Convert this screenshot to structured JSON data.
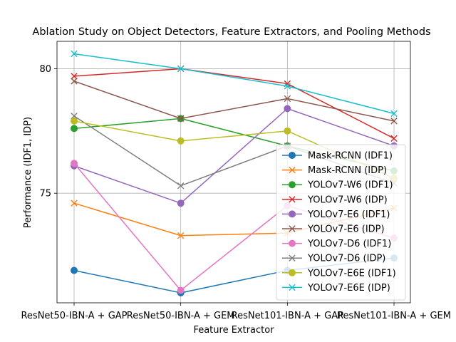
{
  "chart_data": {
    "type": "line",
    "title": "Ablation Study on Object Detectors, Feature Extractors, and Pooling Methods",
    "xlabel": "Feature Extractor",
    "ylabel": "Performance (IDF1, IDP)",
    "categories": [
      "ResNet50-IBN-A + GAP",
      "ResNet50-IBN-A + GEM",
      "ResNet101-IBN-A + GAP",
      "ResNet101-IBN-A + GEM"
    ],
    "yticks": [
      75,
      80
    ],
    "ylim": [
      70.6,
      81.1
    ],
    "grid": true,
    "legend_position": "lower right",
    "series": [
      {
        "name": "Mask-RCNN (IDF1)",
        "marker": "o",
        "color": "#1f77b4",
        "values": [
          71.9,
          71.0,
          71.9,
          72.4
        ]
      },
      {
        "name": "Mask-RCNN (IDP)",
        "marker": "x",
        "color": "#ff7f0e",
        "values": [
          74.6,
          73.3,
          73.4,
          74.4
        ]
      },
      {
        "name": "YOLOv7-W6 (IDF1)",
        "marker": "o",
        "color": "#2ca02c",
        "values": [
          77.6,
          78.0,
          76.9,
          75.9
        ]
      },
      {
        "name": "YOLOv7-W6 (IDP)",
        "marker": "x",
        "color": "#d62728",
        "values": [
          79.7,
          80.0,
          79.4,
          77.2
        ]
      },
      {
        "name": "YOLOv7-E6 (IDF1)",
        "marker": "o",
        "color": "#9467bd",
        "values": [
          76.1,
          74.6,
          78.4,
          76.9
        ]
      },
      {
        "name": "YOLOv7-E6 (IDP)",
        "marker": "x",
        "color": "#8c564b",
        "values": [
          79.5,
          78.0,
          78.8,
          77.9
        ]
      },
      {
        "name": "YOLOv7-D6 (IDF1)",
        "marker": "o",
        "color": "#e377c2",
        "values": [
          76.2,
          71.1,
          74.5,
          73.2
        ]
      },
      {
        "name": "YOLOv7-D6 (IDP)",
        "marker": "x",
        "color": "#7f7f7f",
        "values": [
          78.1,
          75.3,
          76.9,
          75.4
        ]
      },
      {
        "name": "YOLOv7-E6E (IDF1)",
        "marker": "o",
        "color": "#bcbd22",
        "values": [
          77.9,
          77.1,
          77.5,
          75.6
        ]
      },
      {
        "name": "YOLOv7-E6E (IDP)",
        "marker": "x",
        "color": "#17becf",
        "values": [
          80.6,
          80.0,
          79.3,
          78.2
        ]
      }
    ]
  }
}
